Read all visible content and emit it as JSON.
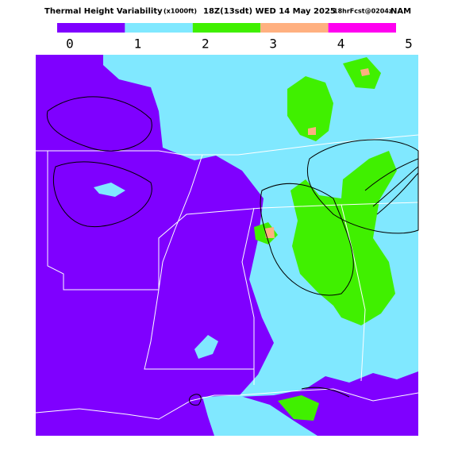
{
  "header": {
    "title": "Thermal Height Variability",
    "units": "(x1000ft)",
    "valid": "18Z(13sdt) WED 14 May 2025",
    "forecast": "18hrFcst@0204z",
    "model": "NAM"
  },
  "legend": {
    "ticks": [
      0,
      1,
      2,
      3,
      4,
      5
    ],
    "colors": [
      "#7f00ff",
      "#80e8ff",
      "#40f000",
      "#ffb080",
      "#ff00f0"
    ]
  }
}
